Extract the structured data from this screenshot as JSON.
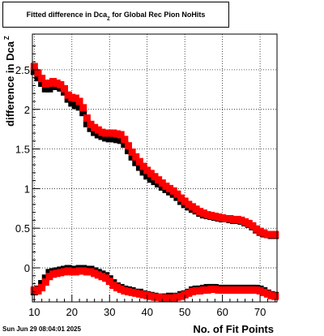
{
  "title": {
    "main": "Fitted difference in Dca",
    "sub": "Z",
    "rest": " for Global Rec Pion NoHits"
  },
  "timestamp": "Sun Jun 29 08:04:01 2025",
  "colors": {
    "series_black": "#000000",
    "series_red": "#ff0000",
    "grid": "#000000",
    "frame": "#000000"
  },
  "chart_data": {
    "type": "scatter",
    "title": "Fitted difference in Dca Z for Global Rec Pion NoHits",
    "xlabel": "No. of Fit Points",
    "ylabel": "difference in Dca_Z",
    "xlim": [
      9.5,
      74.5
    ],
    "ylim": [
      -0.43,
      2.95
    ],
    "x_ticks": [
      10,
      20,
      30,
      40,
      50,
      60,
      70
    ],
    "y_ticks": [
      0,
      0.5,
      1,
      1.5,
      2,
      2.5
    ],
    "x_tick_labels": [
      "10",
      "20",
      "30",
      "40",
      "50",
      "60",
      "70"
    ],
    "y_tick_labels": [
      "0",
      "0.5",
      "1",
      "1.5",
      "2",
      "2.5"
    ],
    "grid": true,
    "legend": "none",
    "marker": "square",
    "series": [
      {
        "color": "#000000",
        "x": [
          10,
          11,
          12,
          13,
          14,
          15,
          16,
          17,
          18,
          19,
          20,
          21,
          22,
          23,
          24,
          25,
          26,
          27,
          28,
          29,
          30,
          31,
          32,
          33,
          34,
          35,
          36,
          37,
          38,
          39,
          40,
          41,
          42,
          43,
          44,
          45,
          46,
          47,
          48,
          49,
          50,
          51,
          52,
          53,
          54,
          55,
          56,
          57,
          58,
          59,
          60,
          61,
          62,
          63,
          64,
          65,
          66,
          67,
          68,
          69,
          70,
          71,
          72,
          73,
          74
        ],
        "upper": [
          2.48,
          2.4,
          2.33,
          2.26,
          2.26,
          2.29,
          2.29,
          2.27,
          2.22,
          2.13,
          2.08,
          2.05,
          2.03,
          1.96,
          1.82,
          1.76,
          1.71,
          1.68,
          1.66,
          1.64,
          1.63,
          1.63,
          1.62,
          1.61,
          1.56,
          1.48,
          1.4,
          1.33,
          1.27,
          1.21,
          1.16,
          1.12,
          1.09,
          1.06,
          1.02,
          0.99,
          0.96,
          0.93,
          0.89,
          0.84,
          0.8,
          0.77,
          0.74,
          0.72,
          0.69,
          0.67,
          0.66,
          0.65,
          0.64,
          0.63,
          0.62,
          0.62,
          0.61,
          0.6,
          0.6,
          0.59,
          0.57,
          0.55,
          0.52,
          0.48,
          0.45,
          0.43,
          0.42,
          0.41,
          0.41
        ],
        "lower": [
          -0.3,
          -0.27,
          -0.2,
          -0.13,
          -0.06,
          -0.05,
          -0.04,
          -0.03,
          -0.02,
          -0.01,
          -0.02,
          -0.02,
          -0.01,
          -0.01,
          -0.02,
          -0.02,
          -0.04,
          -0.06,
          -0.08,
          -0.1,
          -0.14,
          -0.19,
          -0.23,
          -0.25,
          -0.27,
          -0.28,
          -0.29,
          -0.31,
          -0.31,
          -0.33,
          -0.34,
          -0.35,
          -0.36,
          -0.37,
          -0.37,
          -0.37,
          -0.36,
          -0.37,
          -0.36,
          -0.34,
          -0.33,
          -0.31,
          -0.28,
          -0.27,
          -0.27,
          -0.26,
          -0.25,
          -0.25,
          -0.25,
          -0.26,
          -0.26,
          -0.26,
          -0.26,
          -0.26,
          -0.26,
          -0.26,
          -0.26,
          -0.26,
          -0.26,
          -0.26,
          -0.27,
          -0.29,
          -0.32,
          -0.34,
          -0.35
        ]
      },
      {
        "color": "#ff0000",
        "x": [
          10,
          11,
          12,
          13,
          14,
          15,
          16,
          17,
          18,
          19,
          20,
          21,
          22,
          23,
          24,
          25,
          26,
          27,
          28,
          29,
          30,
          31,
          32,
          33,
          34,
          35,
          36,
          37,
          38,
          39,
          40,
          41,
          42,
          43,
          44,
          45,
          46,
          47,
          48,
          49,
          50,
          51,
          52,
          53,
          54,
          55,
          56,
          57,
          58,
          59,
          60,
          61,
          62,
          63,
          64,
          65,
          66,
          67,
          68,
          69,
          70,
          71,
          72,
          73,
          74
        ],
        "upper": [
          2.54,
          2.46,
          2.39,
          2.32,
          2.33,
          2.35,
          2.33,
          2.31,
          2.26,
          2.18,
          2.15,
          2.14,
          2.1,
          2.02,
          1.89,
          1.81,
          1.77,
          1.74,
          1.71,
          1.7,
          1.7,
          1.7,
          1.69,
          1.68,
          1.62,
          1.54,
          1.46,
          1.4,
          1.34,
          1.28,
          1.23,
          1.19,
          1.15,
          1.11,
          1.07,
          1.03,
          1.0,
          0.97,
          0.93,
          0.88,
          0.84,
          0.8,
          0.77,
          0.74,
          0.71,
          0.69,
          0.67,
          0.66,
          0.65,
          0.64,
          0.63,
          0.62,
          0.62,
          0.61,
          0.61,
          0.6,
          0.58,
          0.56,
          0.53,
          0.49,
          0.46,
          0.44,
          0.42,
          0.42,
          0.42
        ],
        "lower": [
          -0.28,
          -0.29,
          -0.25,
          -0.18,
          -0.11,
          -0.08,
          -0.07,
          -0.06,
          -0.05,
          -0.04,
          -0.05,
          -0.05,
          -0.04,
          -0.04,
          -0.05,
          -0.05,
          -0.07,
          -0.09,
          -0.11,
          -0.13,
          -0.17,
          -0.22,
          -0.25,
          -0.27,
          -0.29,
          -0.3,
          -0.31,
          -0.32,
          -0.33,
          -0.34,
          -0.35,
          -0.36,
          -0.37,
          -0.37,
          -0.38,
          -0.38,
          -0.38,
          -0.38,
          -0.37,
          -0.36,
          -0.34,
          -0.32,
          -0.3,
          -0.29,
          -0.29,
          -0.28,
          -0.28,
          -0.27,
          -0.27,
          -0.28,
          -0.28,
          -0.28,
          -0.28,
          -0.28,
          -0.28,
          -0.28,
          -0.28,
          -0.28,
          -0.28,
          -0.28,
          -0.29,
          -0.31,
          -0.33,
          -0.35,
          -0.36
        ]
      }
    ]
  }
}
